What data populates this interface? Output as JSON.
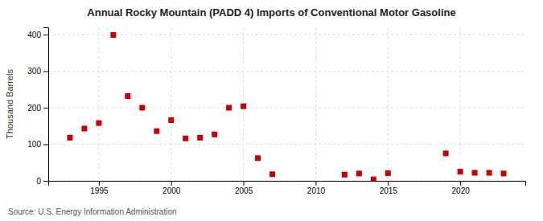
{
  "chart_data": {
    "type": "scatter",
    "title": "Annual Rocky Mountain (PADD 4) Imports of Conventional Motor Gasoline",
    "ylabel": "Thousand Barrels",
    "source": "Source: U.S. Energy Information Administration",
    "x": [
      1993,
      1994,
      1995,
      1996,
      1997,
      1998,
      1999,
      2000,
      2001,
      2002,
      2003,
      2004,
      2005,
      2006,
      2007,
      2012,
      2013,
      2014,
      2015,
      2019,
      2020,
      2021,
      2022,
      2023
    ],
    "values": [
      118,
      143,
      158,
      399,
      232,
      200,
      136,
      166,
      116,
      118,
      127,
      200,
      204,
      62,
      18,
      17,
      20,
      4,
      21,
      75,
      25,
      22,
      22,
      20
    ],
    "color": "#cc0000",
    "marker": "square",
    "xlim": [
      1991.5,
      2024.5
    ],
    "ylim": [
      0,
      420
    ],
    "xticks": [
      1995,
      2000,
      2005,
      2010,
      2015,
      2020
    ],
    "yticks": [
      0,
      100,
      200,
      300,
      400
    ],
    "grid": true
  }
}
